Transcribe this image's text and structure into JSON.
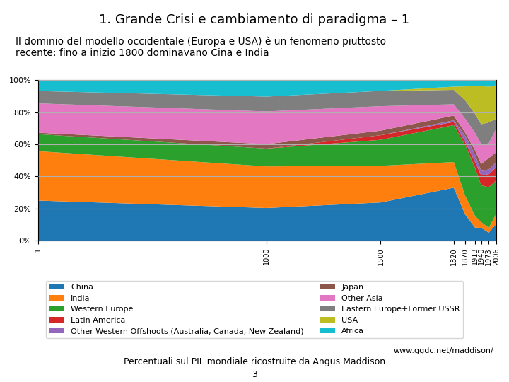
{
  "chart_data": {
    "type": "area",
    "stacked": true,
    "title": "1. Grande Crisi e cambiamento di paradigma – 1",
    "subtitle": "Il dominio del modello occidentale (Europa e USA) è un fenomeno piuttosto\nrecente: fino a inizio 1800 dominavano Cina e India",
    "annotations": [
      "Percentuali sul PIL mondiale ricostruite da Angus Maddison",
      "www.ggdc.net/maddison/",
      "3"
    ],
    "x": [
      1,
      1000,
      1500,
      1820,
      1870,
      1913,
      1940,
      1973,
      2006
    ],
    "xlim": [
      1,
      2006
    ],
    "xticks": [
      1,
      1000,
      1500,
      1820,
      1870,
      1913,
      1940,
      1973,
      2006
    ],
    "ylim": [
      0,
      100
    ],
    "yticks": [
      {
        "value": 0,
        "label": "0%"
      },
      {
        "value": 20,
        "label": "20%"
      },
      {
        "value": 40,
        "label": "40%"
      },
      {
        "value": 60,
        "label": "60%"
      },
      {
        "value": 80,
        "label": "80%"
      },
      {
        "value": 100,
        "label": "100%"
      }
    ],
    "grid": true,
    "legend": "lower center",
    "series": [
      {
        "name": "China",
        "values": [
          25,
          20.37,
          23.81,
          33,
          16.346,
          8.182,
          7.9646,
          5.051,
          10.417
        ]
      },
      {
        "name": "India",
        "values": [
          30.769,
          25.926,
          22.857,
          16,
          11.538,
          7.273,
          3.5398,
          3.03,
          6.25
        ]
      },
      {
        "name": "Western Europe",
        "values": [
          10.577,
          11.111,
          16.19,
          23,
          31.731,
          30,
          23.0088,
          25.253,
          20.833
        ]
      },
      {
        "name": "Latin America",
        "values": [
          0,
          0,
          2.857,
          2,
          1.923,
          3.636,
          6.1947,
          8.081,
          8.333
        ]
      },
      {
        "name": "Other Western Offshoots (Australia, Canada, New Zealand)",
        "values": [
          0,
          0,
          0,
          1,
          3.846,
          4.545,
          2.6549,
          3.03,
          3.125
        ]
      },
      {
        "name": "Japan",
        "values": [
          0.962,
          2.778,
          2.857,
          3,
          1.923,
          2.727,
          4.4248,
          7.071,
          6.25
        ]
      },
      {
        "name": "Other Asia",
        "values": [
          18.269,
          20.37,
          15.238,
          7,
          8.654,
          10.909,
          12.3894,
          9.091,
          14.583
        ]
      },
      {
        "name": "Eastern Europe+Former USSR",
        "values": [
          7.692,
          9.259,
          9.524,
          9,
          11.538,
          11.818,
          12.3894,
          13.131,
          6.25
        ]
      },
      {
        "name": "USA",
        "values": [
          0,
          0,
          0,
          2,
          8.654,
          17.273,
          23.8938,
          22.222,
          20.833
        ]
      },
      {
        "name": "Africa",
        "values": [
          6.731,
          10.185,
          6.667,
          4,
          3.846,
          3.636,
          3.5398,
          4.04,
          3.125
        ]
      }
    ]
  }
}
